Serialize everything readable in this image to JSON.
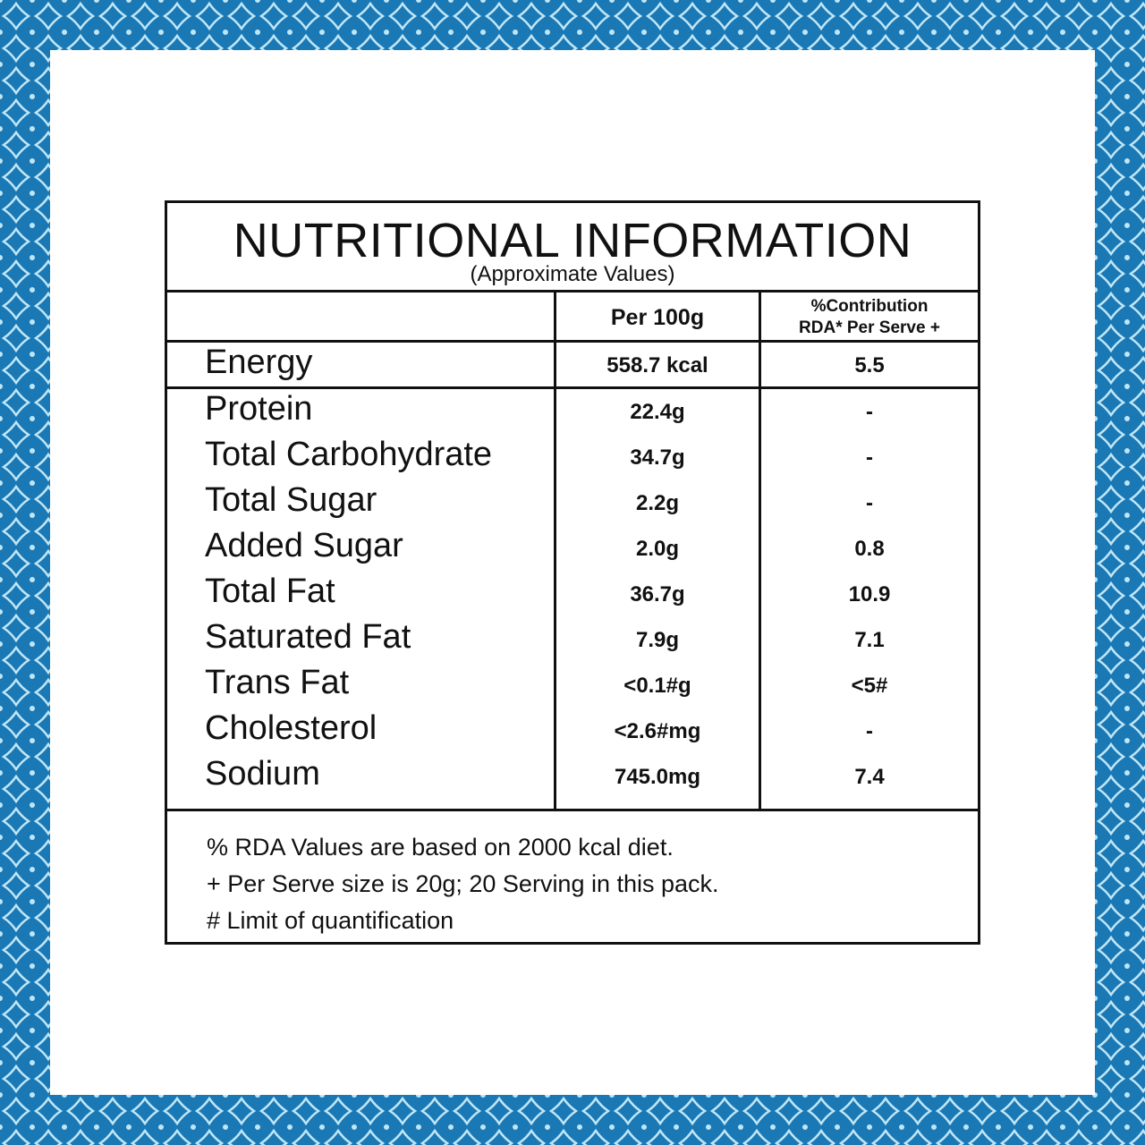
{
  "colors": {
    "border_blue": "#1a78b4",
    "border_pattern": "#bfe6f7",
    "ink": "#111111"
  },
  "label": {
    "title": "NUTRITIONAL INFORMATION",
    "subtitle": "(Approximate Values)",
    "header": {
      "per_100g": "Per 100g",
      "rda_line1": "%Contribution",
      "rda_line2": "RDA* Per Serve +"
    },
    "energy": {
      "name": "Energy",
      "value": "558.7 kcal",
      "rda": "5.5"
    },
    "rows": [
      {
        "name": "Protein",
        "value": "22.4g",
        "rda": "-"
      },
      {
        "name": "Total Carbohydrate",
        "value": "34.7g",
        "rda": "-"
      },
      {
        "name": "Total Sugar",
        "value": "2.2g",
        "rda": "-"
      },
      {
        "name": "Added Sugar",
        "value": "2.0g",
        "rda": "0.8"
      },
      {
        "name": "Total Fat",
        "value": "36.7g",
        "rda": "10.9"
      },
      {
        "name": "Saturated Fat",
        "value": "7.9g",
        "rda": "7.1"
      },
      {
        "name": "Trans Fat",
        "value": "<0.1#g",
        "rda": "<5#"
      },
      {
        "name": "Cholesterol",
        "value": "<2.6#mg",
        "rda": "-"
      },
      {
        "name": "Sodium",
        "value": "745.0mg",
        "rda": "7.4"
      }
    ],
    "notes": [
      "% RDA Values are based on 2000 kcal diet.",
      "+ Per Serve size is 20g; 20 Serving in this pack.",
      "# Limit of quantification"
    ]
  }
}
